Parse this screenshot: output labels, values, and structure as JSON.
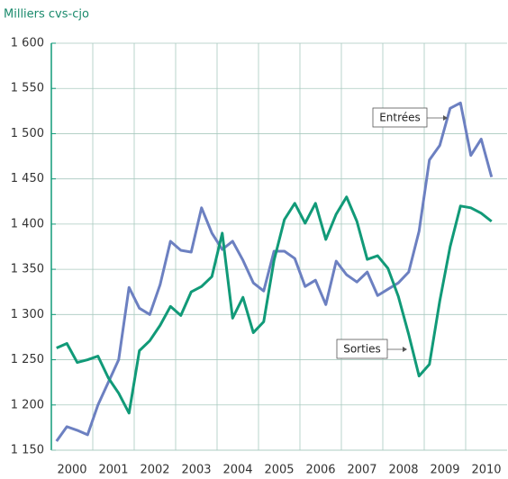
{
  "chart_data": {
    "type": "line",
    "y_label": "Milliers cvs-cjo",
    "x": [
      2000.125,
      2000.375,
      2000.625,
      2000.875,
      2001.125,
      2001.375,
      2001.625,
      2001.875,
      2002.125,
      2002.375,
      2002.625,
      2002.875,
      2003.125,
      2003.375,
      2003.625,
      2003.875,
      2004.125,
      2004.375,
      2004.625,
      2004.875,
      2005.125,
      2005.375,
      2005.625,
      2005.875,
      2006.125,
      2006.375,
      2006.625,
      2006.875,
      2007.125,
      2007.375,
      2007.625,
      2007.875,
      2008.125,
      2008.375,
      2008.625,
      2008.875,
      2009.125,
      2009.375,
      2009.625,
      2009.875,
      2010.125,
      2010.375,
      2010.625
    ],
    "series": [
      {
        "name": "Entrées",
        "color": "#6c80c1",
        "values": [
          1160,
          1176,
          1172,
          1167,
          1200,
          1225,
          1250,
          1330,
          1307,
          1300,
          1333,
          1381,
          1371,
          1369,
          1418,
          1390,
          1372,
          1381,
          1360,
          1335,
          1326,
          1370,
          1370,
          1362,
          1331,
          1338,
          1311,
          1359,
          1344,
          1336,
          1347,
          1321,
          1328,
          1335,
          1347,
          1392,
          1471,
          1487,
          1528,
          1534,
          1476,
          1494,
          1452
        ]
      },
      {
        "name": "Sorties",
        "color": "#119a78",
        "values": [
          1263,
          1268,
          1247,
          1250,
          1254,
          1230,
          1213,
          1191,
          1260,
          1271,
          1288,
          1309,
          1299,
          1325,
          1331,
          1342,
          1390,
          1296,
          1319,
          1280,
          1292,
          1360,
          1405,
          1423,
          1401,
          1423,
          1383,
          1411,
          1430,
          1403,
          1361,
          1365,
          1351,
          1320,
          1278,
          1232,
          1245,
          1315,
          1375,
          1420,
          1418,
          1412,
          1403
        ]
      }
    ],
    "xlim": [
      2000,
      2011
    ],
    "xticks": [
      2000,
      2001,
      2002,
      2003,
      2004,
      2005,
      2006,
      2007,
      2008,
      2009,
      2010
    ],
    "ylim": [
      1150,
      1600
    ],
    "yticks": [
      {
        "value": 1150,
        "label": "1 150"
      },
      {
        "value": 1200,
        "label": "1 200"
      },
      {
        "value": 1250,
        "label": "1 250"
      },
      {
        "value": 1300,
        "label": "1 300"
      },
      {
        "value": 1350,
        "label": "1 350"
      },
      {
        "value": 1400,
        "label": "1 400"
      },
      {
        "value": 1450,
        "label": "1 450"
      },
      {
        "value": 1500,
        "label": "1 500"
      },
      {
        "value": 1550,
        "label": "1 550"
      },
      {
        "value": 1600,
        "label": "1 600"
      }
    ],
    "grid": true
  }
}
